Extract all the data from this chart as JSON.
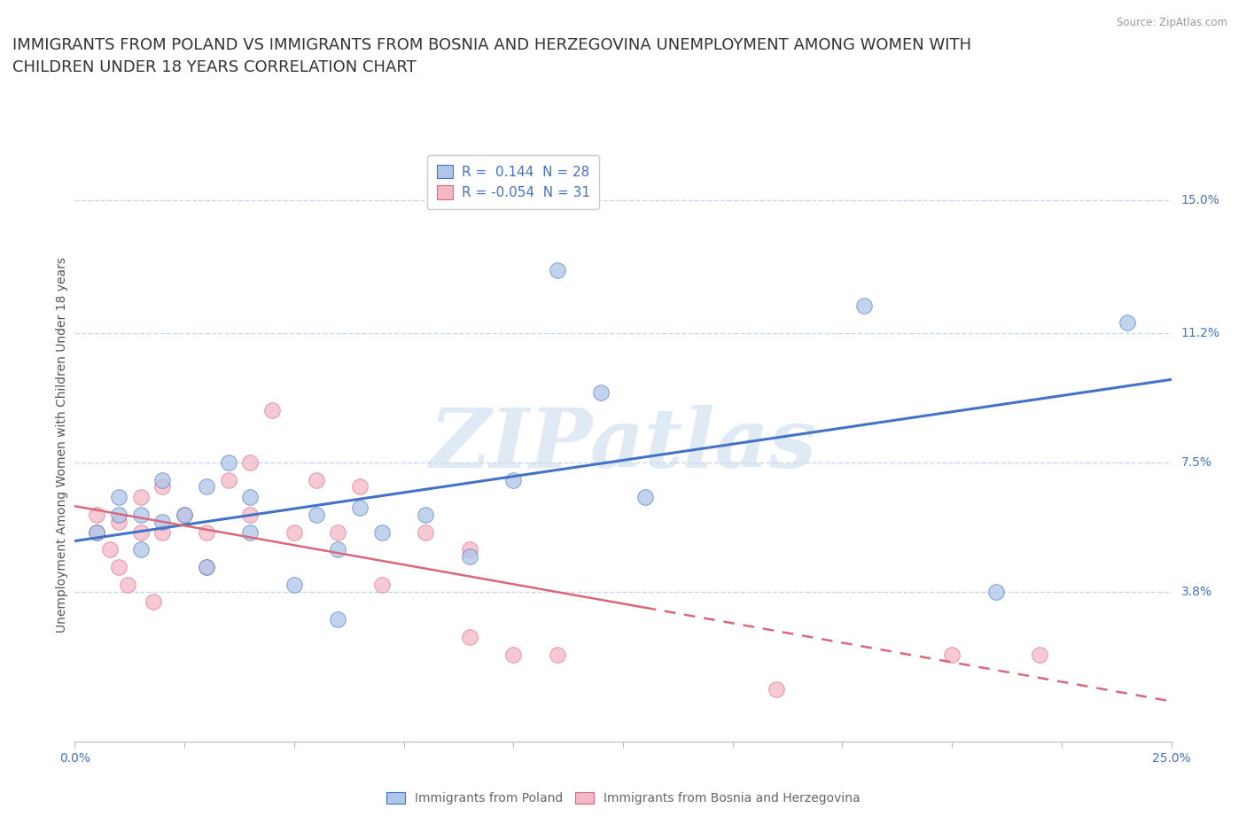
{
  "title": "IMMIGRANTS FROM POLAND VS IMMIGRANTS FROM BOSNIA AND HERZEGOVINA UNEMPLOYMENT AMONG WOMEN WITH\nCHILDREN UNDER 18 YEARS CORRELATION CHART",
  "source": "Source: ZipAtlas.com",
  "ylabel": "Unemployment Among Women with Children Under 18 years",
  "xlim": [
    0.0,
    0.25
  ],
  "ylim": [
    -0.005,
    0.165
  ],
  "ytick_labels_right": [
    "3.8%",
    "7.5%",
    "11.2%",
    "15.0%"
  ],
  "ytick_vals_right": [
    0.038,
    0.075,
    0.112,
    0.15
  ],
  "poland_color": "#aec6e8",
  "bosnia_color": "#f4b8c8",
  "poland_label": "Immigrants from Poland",
  "bosnia_label": "Immigrants from Bosnia and Herzegovina",
  "R_poland": 0.144,
  "N_poland": 28,
  "R_bosnia": -0.054,
  "N_bosnia": 31,
  "trend_blue_color": "#4472c4",
  "trend_pink_color": "#d9687a",
  "watermark": "ZIPatlas",
  "poland_x": [
    0.005,
    0.01,
    0.01,
    0.015,
    0.015,
    0.02,
    0.02,
    0.025,
    0.03,
    0.03,
    0.035,
    0.04,
    0.04,
    0.05,
    0.055,
    0.06,
    0.06,
    0.065,
    0.07,
    0.08,
    0.09,
    0.1,
    0.11,
    0.12,
    0.13,
    0.18,
    0.21,
    0.24
  ],
  "poland_y": [
    0.055,
    0.06,
    0.065,
    0.05,
    0.06,
    0.058,
    0.07,
    0.06,
    0.045,
    0.068,
    0.075,
    0.055,
    0.065,
    0.04,
    0.06,
    0.03,
    0.05,
    0.062,
    0.055,
    0.06,
    0.048,
    0.07,
    0.13,
    0.095,
    0.065,
    0.12,
    0.038,
    0.115
  ],
  "bosnia_x": [
    0.005,
    0.005,
    0.008,
    0.01,
    0.01,
    0.012,
    0.015,
    0.015,
    0.018,
    0.02,
    0.02,
    0.025,
    0.03,
    0.03,
    0.035,
    0.04,
    0.04,
    0.045,
    0.05,
    0.055,
    0.06,
    0.065,
    0.07,
    0.08,
    0.09,
    0.09,
    0.1,
    0.11,
    0.16,
    0.2,
    0.22
  ],
  "bosnia_y": [
    0.055,
    0.06,
    0.05,
    0.045,
    0.058,
    0.04,
    0.055,
    0.065,
    0.035,
    0.055,
    0.068,
    0.06,
    0.045,
    0.055,
    0.07,
    0.06,
    0.075,
    0.09,
    0.055,
    0.07,
    0.055,
    0.068,
    0.04,
    0.055,
    0.025,
    0.05,
    0.02,
    0.02,
    0.01,
    0.02,
    0.02
  ],
  "background_color": "#ffffff",
  "grid_color": "#c8d8ea",
  "title_fontsize": 13,
  "axis_fontsize": 10,
  "legend_fontsize": 11,
  "marker_size": 160
}
